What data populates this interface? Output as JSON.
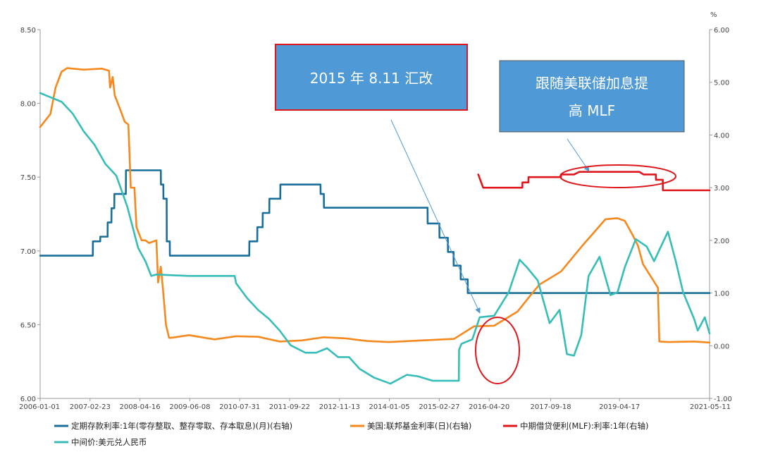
{
  "chart_data": {
    "type": "line",
    "left_axis": {
      "ylim": [
        6.0,
        8.5
      ],
      "ticks": [
        "6.00",
        "6.50",
        "7.00",
        "7.50",
        "8.00",
        "8.50"
      ]
    },
    "right_axis": {
      "unit": "%",
      "ylim": [
        -1.0,
        6.0
      ],
      "ticks": [
        "-1.00",
        "0.00",
        "1.00",
        "2.00",
        "3.00",
        "4.00",
        "5.00",
        "6.00"
      ]
    },
    "x_ticks": [
      "2006-01-01",
      "2007-02-23",
      "2008-04-16",
      "2009-06-08",
      "2010-07-31",
      "2011-09-22",
      "2012-11-13",
      "2014-01-05",
      "2015-02-27",
      "2016-04-20",
      "2017-09-18",
      "2019-04-17",
      "2021-05-11"
    ],
    "xlim": [
      "2006-01-01",
      "2021-05-11"
    ],
    "grid": false,
    "legend_position": "bottom",
    "series": [
      {
        "name": "定期存款利率:1年(零存整取、整存零取、存本取息)(月)(右轴)",
        "axis": "right",
        "color": "#1a6e9a",
        "points": [
          [
            "2006-01-01",
            1.71
          ],
          [
            "2006-09-01",
            1.71
          ],
          [
            "2007-03-18",
            1.71
          ],
          [
            "2007-03-19",
            1.98
          ],
          [
            "2007-05-19",
            1.98
          ],
          [
            "2007-05-20",
            2.07
          ],
          [
            "2007-07-20",
            2.07
          ],
          [
            "2007-07-21",
            2.34
          ],
          [
            "2007-08-21",
            2.34
          ],
          [
            "2007-08-22",
            2.61
          ],
          [
            "2007-09-14",
            2.61
          ],
          [
            "2007-09-15",
            2.88
          ],
          [
            "2007-12-20",
            2.88
          ],
          [
            "2007-12-21",
            3.33
          ],
          [
            "2008-10-08",
            3.33
          ],
          [
            "2008-10-09",
            3.06
          ],
          [
            "2008-10-29",
            3.06
          ],
          [
            "2008-10-30",
            2.79
          ],
          [
            "2008-11-26",
            2.79
          ],
          [
            "2008-11-27",
            1.98
          ],
          [
            "2008-12-22",
            1.98
          ],
          [
            "2008-12-23",
            1.71
          ],
          [
            "2010-10-19",
            1.71
          ],
          [
            "2010-10-20",
            1.98
          ],
          [
            "2010-12-25",
            1.98
          ],
          [
            "2010-12-26",
            2.25
          ],
          [
            "2011-02-08",
            2.25
          ],
          [
            "2011-02-09",
            2.52
          ],
          [
            "2011-04-05",
            2.52
          ],
          [
            "2011-04-06",
            2.79
          ],
          [
            "2011-07-06",
            2.79
          ],
          [
            "2011-07-07",
            3.06
          ],
          [
            "2012-06-07",
            3.06
          ],
          [
            "2012-06-08",
            2.88
          ],
          [
            "2012-07-05",
            2.88
          ],
          [
            "2012-07-06",
            2.62
          ],
          [
            "2014-11-21",
            2.62
          ],
          [
            "2014-11-22",
            2.32
          ],
          [
            "2015-02-28",
            2.32
          ],
          [
            "2015-03-01",
            2.05
          ],
          [
            "2015-05-10",
            2.05
          ],
          [
            "2015-05-11",
            1.78
          ],
          [
            "2015-06-27",
            1.78
          ],
          [
            "2015-06-28",
            1.52
          ],
          [
            "2015-08-25",
            1.52
          ],
          [
            "2015-08-26",
            1.26
          ],
          [
            "2015-10-23",
            1.26
          ],
          [
            "2015-10-24",
            1.0
          ],
          [
            "2021-05-11",
            1.0
          ]
        ]
      },
      {
        "name": "美国:联邦基金利率(日)(右轴)",
        "axis": "right",
        "color": "#f5891e",
        "points": [
          [
            "2006-01-01",
            4.15
          ],
          [
            "2006-03-28",
            4.4
          ],
          [
            "2006-05-10",
            4.9
          ],
          [
            "2006-06-29",
            5.2
          ],
          [
            "2006-08-15",
            5.27
          ],
          [
            "2007-01-01",
            5.24
          ],
          [
            "2007-06-01",
            5.26
          ],
          [
            "2007-08-01",
            5.22
          ],
          [
            "2007-08-10",
            4.9
          ],
          [
            "2007-09-01",
            5.1
          ],
          [
            "2007-09-18",
            4.75
          ],
          [
            "2007-10-31",
            4.5
          ],
          [
            "2007-12-11",
            4.25
          ],
          [
            "2008-01-10",
            4.2
          ],
          [
            "2008-01-22",
            3.5
          ],
          [
            "2008-01-30",
            3.0
          ],
          [
            "2008-03-01",
            3.0
          ],
          [
            "2008-03-18",
            2.25
          ],
          [
            "2008-04-30",
            2.0
          ],
          [
            "2008-06-01",
            2.0
          ],
          [
            "2008-07-01",
            1.95
          ],
          [
            "2008-09-01",
            2.0
          ],
          [
            "2008-09-15",
            1.2
          ],
          [
            "2008-10-08",
            1.5
          ],
          [
            "2008-10-29",
            1.0
          ],
          [
            "2008-11-20",
            0.4
          ],
          [
            "2008-12-16",
            0.15
          ],
          [
            "2009-01-01",
            0.15
          ],
          [
            "2009-06-01",
            0.2
          ],
          [
            "2010-01-01",
            0.12
          ],
          [
            "2010-07-01",
            0.18
          ],
          [
            "2011-01-01",
            0.17
          ],
          [
            "2011-07-01",
            0.08
          ],
          [
            "2012-01-01",
            0.1
          ],
          [
            "2012-07-01",
            0.16
          ],
          [
            "2013-01-01",
            0.14
          ],
          [
            "2013-07-01",
            0.09
          ],
          [
            "2014-01-01",
            0.07
          ],
          [
            "2014-07-01",
            0.09
          ],
          [
            "2015-01-01",
            0.11
          ],
          [
            "2015-07-01",
            0.13
          ],
          [
            "2015-12-17",
            0.37
          ],
          [
            "2016-06-01",
            0.38
          ],
          [
            "2016-12-15",
            0.65
          ],
          [
            "2017-03-16",
            0.91
          ],
          [
            "2017-06-15",
            1.16
          ],
          [
            "2017-12-14",
            1.41
          ],
          [
            "2018-03-22",
            1.68
          ],
          [
            "2018-06-14",
            1.91
          ],
          [
            "2018-09-27",
            2.18
          ],
          [
            "2018-12-20",
            2.4
          ],
          [
            "2019-04-01",
            2.42
          ],
          [
            "2019-06-01",
            2.37
          ],
          [
            "2019-08-01",
            2.12
          ],
          [
            "2019-09-19",
            1.9
          ],
          [
            "2019-10-31",
            1.55
          ],
          [
            "2020-03-04",
            1.1
          ],
          [
            "2020-03-16",
            0.08
          ],
          [
            "2020-06-01",
            0.07
          ],
          [
            "2021-01-01",
            0.08
          ],
          [
            "2021-05-11",
            0.06
          ]
        ]
      },
      {
        "name": "中期借贷便利(MLF):利率:1年(右轴)",
        "axis": "right",
        "color": "#e0161d",
        "points": [
          [
            "2016-01-20",
            3.25
          ],
          [
            "2016-03-01",
            3.0
          ],
          [
            "2017-01-23",
            3.0
          ],
          [
            "2017-01-24",
            3.1
          ],
          [
            "2017-03-15",
            3.1
          ],
          [
            "2017-03-16",
            3.2
          ],
          [
            "2017-12-13",
            3.2
          ],
          [
            "2017-12-14",
            3.25
          ],
          [
            "2018-04-01",
            3.25
          ],
          [
            "2018-05-15",
            3.3
          ],
          [
            "2019-10-01",
            3.3
          ],
          [
            "2019-11-05",
            3.25
          ],
          [
            "2020-02-16",
            3.25
          ],
          [
            "2020-02-17",
            3.15
          ],
          [
            "2020-04-14",
            3.15
          ],
          [
            "2020-04-15",
            2.95
          ],
          [
            "2021-05-11",
            2.95
          ]
        ]
      },
      {
        "name": "中间价:美元兑人民币",
        "axis": "left",
        "color": "#37bdb7",
        "points": [
          [
            "2006-01-01",
            8.07
          ],
          [
            "2006-04-01",
            8.04
          ],
          [
            "2006-07-01",
            8.01
          ],
          [
            "2006-10-01",
            7.93
          ],
          [
            "2007-01-01",
            7.81
          ],
          [
            "2007-04-01",
            7.72
          ],
          [
            "2007-07-01",
            7.59
          ],
          [
            "2007-10-01",
            7.51
          ],
          [
            "2008-01-01",
            7.3
          ],
          [
            "2008-04-01",
            7.02
          ],
          [
            "2008-06-01",
            6.93
          ],
          [
            "2008-07-20",
            6.83
          ],
          [
            "2008-09-01",
            6.84
          ],
          [
            "2009-06-01",
            6.83
          ],
          [
            "2010-06-19",
            6.83
          ],
          [
            "2010-07-01",
            6.78
          ],
          [
            "2010-10-01",
            6.68
          ],
          [
            "2011-01-01",
            6.6
          ],
          [
            "2011-04-01",
            6.54
          ],
          [
            "2011-07-01",
            6.46
          ],
          [
            "2011-10-01",
            6.36
          ],
          [
            "2012-02-01",
            6.31
          ],
          [
            "2012-05-01",
            6.31
          ],
          [
            "2012-08-01",
            6.34
          ],
          [
            "2012-11-01",
            6.28
          ],
          [
            "2013-02-01",
            6.28
          ],
          [
            "2013-05-01",
            6.2
          ],
          [
            "2013-09-01",
            6.14
          ],
          [
            "2014-01-14",
            6.1
          ],
          [
            "2014-03-01",
            6.12
          ],
          [
            "2014-06-01",
            6.16
          ],
          [
            "2014-09-01",
            6.15
          ],
          [
            "2015-01-01",
            6.12
          ],
          [
            "2015-08-10",
            6.12
          ],
          [
            "2015-08-12",
            6.33
          ],
          [
            "2015-09-01",
            6.37
          ],
          [
            "2015-12-01",
            6.4
          ],
          [
            "2016-02-01",
            6.55
          ],
          [
            "2016-06-01",
            6.56
          ],
          [
            "2016-10-01",
            6.72
          ],
          [
            "2017-01-01",
            6.94
          ],
          [
            "2017-03-01",
            6.89
          ],
          [
            "2017-06-01",
            6.8
          ],
          [
            "2017-09-09",
            6.51
          ],
          [
            "2017-12-01",
            6.6
          ],
          [
            "2018-02-01",
            6.3
          ],
          [
            "2018-04-01",
            6.29
          ],
          [
            "2018-06-01",
            6.43
          ],
          [
            "2018-08-01",
            6.83
          ],
          [
            "2018-11-01",
            6.96
          ],
          [
            "2019-02-01",
            6.7
          ],
          [
            "2019-04-01",
            6.72
          ],
          [
            "2019-06-01",
            6.89
          ],
          [
            "2019-09-01",
            7.08
          ],
          [
            "2019-12-01",
            7.03
          ],
          [
            "2020-02-01",
            6.93
          ],
          [
            "2020-05-27",
            7.13
          ],
          [
            "2020-08-01",
            6.93
          ],
          [
            "2020-10-01",
            6.72
          ],
          [
            "2021-01-01",
            6.54
          ],
          [
            "2021-02-01",
            6.46
          ],
          [
            "2021-04-01",
            6.55
          ],
          [
            "2021-05-11",
            6.44
          ]
        ]
      }
    ],
    "annotations": [
      {
        "text": "2015 年 8.11 汇改",
        "arrow_to": [
          "2015-08-11",
          6.31
        ]
      },
      {
        "text_line1": "跟随美联储加息提",
        "text_line2": "高 MLF",
        "arrow_to": [
          "2017-02-01",
          3.2
        ]
      }
    ]
  },
  "colors": {
    "callout_fill": "#4f9ad6",
    "circle": "#e0161d"
  }
}
